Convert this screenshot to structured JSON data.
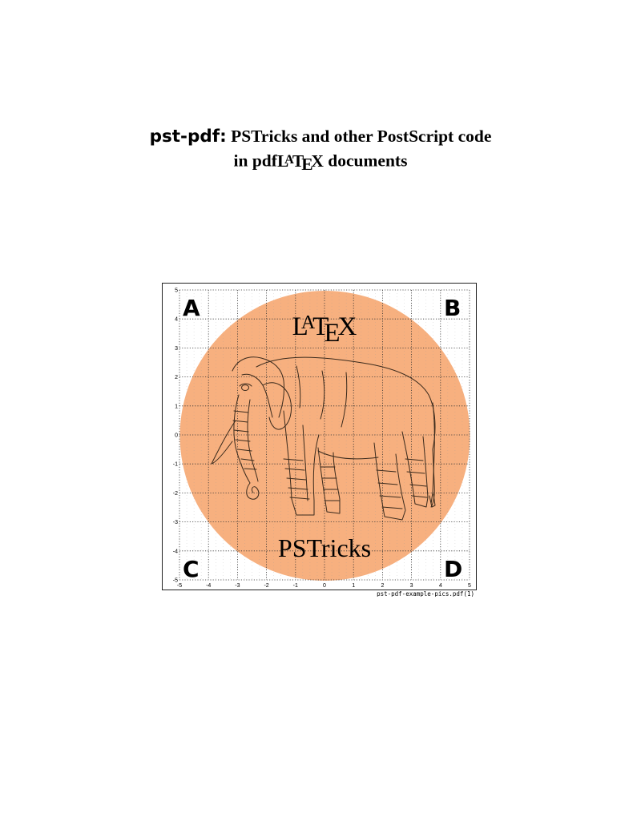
{
  "title": {
    "package_name": "pst-pdf:",
    "line1_rest": "PSTricks and other PostScript code",
    "line2_prefix": "in pdf",
    "line2_logo_l": "L",
    "line2_logo_a": "A",
    "line2_logo_t": "T",
    "line2_logo_e": "E",
    "line2_logo_x": "X",
    "line2_suffix": "documents"
  },
  "figure": {
    "corner_labels": [
      "A",
      "B",
      "C",
      "D"
    ],
    "top_logo": {
      "l": "L",
      "a": "A",
      "t": "T",
      "e": "E",
      "x": "X"
    },
    "bottom_text": "PSTricks",
    "x_ticks": [
      "-5",
      "-4",
      "-3",
      "-2",
      "-1",
      "0",
      "1",
      "2",
      "3",
      "4",
      "5"
    ],
    "y_ticks": [
      "5",
      "4",
      "3",
      "2",
      "1",
      "0",
      "-1",
      "-2",
      "-3",
      "-4",
      "-5"
    ],
    "file_caption": "pst-pdf-example-pics.pdf(1)",
    "circle_color": "#f7b07f",
    "grid_color": "#333333"
  }
}
